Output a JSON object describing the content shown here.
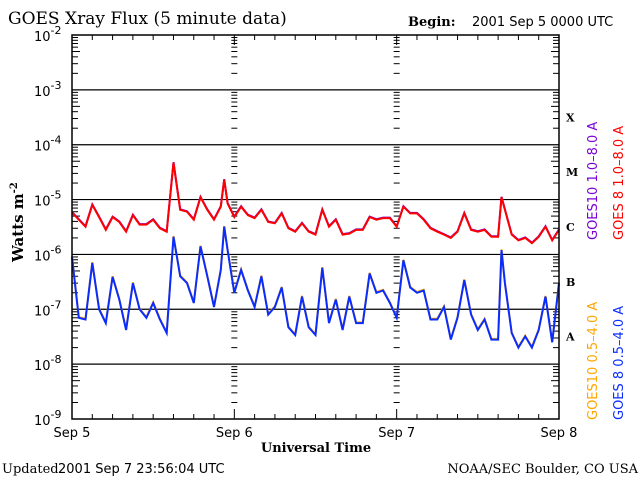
{
  "chart_data": {
    "type": "line",
    "title": "GOES Xray Flux (5 minute data)",
    "begin_label": "Begin:",
    "begin_value": "2001 Sep 5 0000 UTC",
    "xlabel": "Universal Time",
    "ylabel": "Watts m",
    "ylabel_sup": "-2",
    "y_scale": "log",
    "ylim": [
      1e-09,
      0.01
    ],
    "xlim": [
      "2001-09-05 00:00",
      "2001-09-08 00:00"
    ],
    "x_tick_labels": [
      "Sep 5",
      "Sep 6",
      "Sep 7",
      "Sep 8"
    ],
    "y_tick_labels": [
      {
        "base": "10",
        "exp": "-2"
      },
      {
        "base": "10",
        "exp": "-3"
      },
      {
        "base": "10",
        "exp": "-4"
      },
      {
        "base": "10",
        "exp": "-5"
      },
      {
        "base": "10",
        "exp": "-6"
      },
      {
        "base": "10",
        "exp": "-7"
      },
      {
        "base": "10",
        "exp": "-8"
      },
      {
        "base": "10",
        "exp": "-9"
      }
    ],
    "flare_classes": [
      "X",
      "M",
      "C",
      "B",
      "A"
    ],
    "grid": true,
    "legend_placement": "right, rotated",
    "x": [
      "2001-09-05 00:00",
      "2001-09-05 01:00",
      "2001-09-05 02:00",
      "2001-09-05 03:00",
      "2001-09-05 04:00",
      "2001-09-05 05:00",
      "2001-09-05 06:00",
      "2001-09-05 07:00",
      "2001-09-05 08:00",
      "2001-09-05 09:00",
      "2001-09-05 10:00",
      "2001-09-05 11:00",
      "2001-09-05 12:00",
      "2001-09-05 13:00",
      "2001-09-05 14:00",
      "2001-09-05 15:00",
      "2001-09-05 16:00",
      "2001-09-05 17:00",
      "2001-09-05 18:00",
      "2001-09-05 19:00",
      "2001-09-05 20:00",
      "2001-09-05 21:00",
      "2001-09-05 22:00",
      "2001-09-05 22:30",
      "2001-09-05 23:00",
      "2001-09-06 00:00",
      "2001-09-06 01:00",
      "2001-09-06 02:00",
      "2001-09-06 03:00",
      "2001-09-06 04:00",
      "2001-09-06 05:00",
      "2001-09-06 06:00",
      "2001-09-06 07:00",
      "2001-09-06 08:00",
      "2001-09-06 09:00",
      "2001-09-06 10:00",
      "2001-09-06 11:00",
      "2001-09-06 12:00",
      "2001-09-06 13:00",
      "2001-09-06 14:00",
      "2001-09-06 15:00",
      "2001-09-06 16:00",
      "2001-09-06 17:00",
      "2001-09-06 18:00",
      "2001-09-06 19:00",
      "2001-09-06 20:00",
      "2001-09-06 21:00",
      "2001-09-06 22:00",
      "2001-09-06 23:00",
      "2001-09-07 00:00",
      "2001-09-07 01:00",
      "2001-09-07 02:00",
      "2001-09-07 03:00",
      "2001-09-07 04:00",
      "2001-09-07 05:00",
      "2001-09-07 06:00",
      "2001-09-07 07:00",
      "2001-09-07 08:00",
      "2001-09-07 09:00",
      "2001-09-07 10:00",
      "2001-09-07 11:00",
      "2001-09-07 12:00",
      "2001-09-07 13:00",
      "2001-09-07 14:00",
      "2001-09-07 15:00",
      "2001-09-07 15:30",
      "2001-09-07 16:00",
      "2001-09-07 17:00",
      "2001-09-07 18:00",
      "2001-09-07 19:00",
      "2001-09-07 20:00",
      "2001-09-07 21:00",
      "2001-09-07 22:00",
      "2001-09-07 23:00",
      "2001-09-08 00:00"
    ],
    "series": [
      {
        "name": "GOES10 1.0-8.0 A",
        "color": "#7a00d6",
        "values": [
          5.8e-06,
          4.3e-06,
          3.2e-06,
          8e-06,
          4.8e-06,
          2.8e-06,
          4.8e-06,
          3.9e-06,
          2.6e-06,
          5.2e-06,
          3.5e-06,
          3.5e-06,
          4.3e-06,
          3e-06,
          2.6e-06,
          4.7e-05,
          6.5e-06,
          6e-06,
          4.3e-06,
          1.1e-05,
          6.5e-06,
          4.3e-06,
          7.4e-06,
          2.3e-05,
          8.5e-06,
          4.8e-06,
          7.4e-06,
          5.2e-06,
          4.6e-06,
          6.5e-06,
          3.9e-06,
          3.7e-06,
          5.6e-06,
          3e-06,
          2.6e-06,
          3.7e-06,
          2.6e-06,
          2.3e-06,
          6.5e-06,
          3.2e-06,
          4.3e-06,
          2.3e-06,
          2.4e-06,
          2.8e-06,
          2.8e-06,
          4.8e-06,
          4.3e-06,
          4.6e-06,
          4.6e-06,
          3.2e-06,
          7.4e-06,
          5.6e-06,
          5.6e-06,
          4.3e-06,
          3e-06,
          2.6e-06,
          2.3e-06,
          2e-06,
          2.6e-06,
          5.6e-06,
          2.8e-06,
          2.6e-06,
          2.8e-06,
          2.1e-06,
          2.1e-06,
          1.1e-05,
          6.5e-06,
          2.3e-06,
          1.8e-06,
          2e-06,
          1.6e-06,
          2.1e-06,
          3.2e-06,
          1.8e-06,
          2.8e-06
        ]
      },
      {
        "name": "GOES 8 1.0-8.0 A",
        "color": "#ff0000",
        "values": [
          5.8e-06,
          4.3e-06,
          3.2e-06,
          8e-06,
          4.8e-06,
          2.8e-06,
          4.8e-06,
          3.9e-06,
          2.6e-06,
          5.2e-06,
          3.5e-06,
          3.5e-06,
          4.3e-06,
          3e-06,
          2.6e-06,
          4.7e-05,
          6.5e-06,
          6e-06,
          4.3e-06,
          1.1e-05,
          6.5e-06,
          4.3e-06,
          7.4e-06,
          2.3e-05,
          8.5e-06,
          4.8e-06,
          7.4e-06,
          5.2e-06,
          4.6e-06,
          6.5e-06,
          3.9e-06,
          3.7e-06,
          5.6e-06,
          3e-06,
          2.6e-06,
          3.7e-06,
          2.6e-06,
          2.3e-06,
          6.5e-06,
          3.2e-06,
          4.3e-06,
          2.3e-06,
          2.4e-06,
          2.8e-06,
          2.8e-06,
          4.8e-06,
          4.3e-06,
          4.6e-06,
          4.6e-06,
          3.2e-06,
          7.4e-06,
          5.6e-06,
          5.6e-06,
          4.3e-06,
          3e-06,
          2.6e-06,
          2.3e-06,
          2e-06,
          2.6e-06,
          5.6e-06,
          2.8e-06,
          2.6e-06,
          2.8e-06,
          2.1e-06,
          2.1e-06,
          1.1e-05,
          6.5e-06,
          2.3e-06,
          1.8e-06,
          2e-06,
          1.6e-06,
          2.1e-06,
          3.2e-06,
          1.8e-06,
          2.8e-06
        ]
      },
      {
        "name": "GOES10 0.5-4.0 A",
        "color": "#ffa500",
        "values": [
          9e-07,
          7e-08,
          6.5e-08,
          7e-07,
          1e-07,
          5.6e-08,
          3.9e-07,
          1.5e-07,
          4.2e-08,
          3e-07,
          1e-07,
          7e-08,
          1.3e-07,
          6.5e-08,
          3.7e-08,
          2.1e-06,
          4e-07,
          3e-07,
          1.3e-07,
          1.4e-06,
          4e-07,
          1.1e-07,
          5.2e-07,
          3.2e-06,
          1.2e-06,
          2e-07,
          5.2e-07,
          2.2e-07,
          1.1e-07,
          4e-07,
          8e-08,
          1.1e-07,
          2.5e-07,
          4.7e-08,
          3.4e-08,
          1.7e-07,
          4.7e-08,
          3.4e-08,
          5.7e-07,
          5.6e-08,
          1.5e-07,
          4.2e-08,
          1.7e-07,
          5.6e-08,
          5.6e-08,
          4.5e-07,
          2e-07,
          2.2e-07,
          1.3e-07,
          7e-08,
          7.8e-07,
          2.5e-07,
          2e-07,
          2.2e-07,
          6.5e-08,
          6.5e-08,
          1.1e-07,
          2.8e-08,
          7e-08,
          3.4e-07,
          8e-08,
          4.2e-08,
          6.5e-08,
          2.8e-08,
          2.8e-08,
          1.2e-06,
          3e-07,
          3.7e-08,
          2e-08,
          3.2e-08,
          2e-08,
          4.2e-08,
          1.7e-07,
          2.5e-08,
          3e-07
        ]
      },
      {
        "name": "GOES 8 0.5-4.0 A",
        "color": "#0a2cff",
        "values": [
          9e-07,
          7e-08,
          6.5e-08,
          7e-07,
          1e-07,
          5.6e-08,
          3.9e-07,
          1.5e-07,
          4.2e-08,
          3e-07,
          1e-07,
          7e-08,
          1.3e-07,
          6.5e-08,
          3.7e-08,
          2.1e-06,
          4e-07,
          3e-07,
          1.3e-07,
          1.4e-06,
          4e-07,
          1.1e-07,
          5.2e-07,
          3.2e-06,
          1.2e-06,
          2e-07,
          5.2e-07,
          2.2e-07,
          1.1e-07,
          4e-07,
          8e-08,
          1.1e-07,
          2.5e-07,
          4.7e-08,
          3.4e-08,
          1.7e-07,
          4.7e-08,
          3.4e-08,
          5.7e-07,
          5.6e-08,
          1.5e-07,
          4.2e-08,
          1.7e-07,
          5.6e-08,
          5.6e-08,
          4.5e-07,
          2e-07,
          2.2e-07,
          1.3e-07,
          7e-08,
          7.8e-07,
          2.5e-07,
          2e-07,
          2.2e-07,
          6.5e-08,
          6.5e-08,
          1.1e-07,
          2.8e-08,
          7e-08,
          3.4e-07,
          8e-08,
          4.2e-08,
          6.5e-08,
          2.8e-08,
          2.8e-08,
          1.2e-06,
          3e-07,
          3.7e-08,
          2e-08,
          3.2e-08,
          2e-08,
          4.2e-08,
          1.7e-07,
          2.5e-08,
          3e-07
        ]
      }
    ]
  },
  "footer": {
    "updated_label": "Updated",
    "updated_value": "2001 Sep  7 23:56:04 UTC",
    "credit": "NOAA/SEC Boulder, CO USA"
  }
}
